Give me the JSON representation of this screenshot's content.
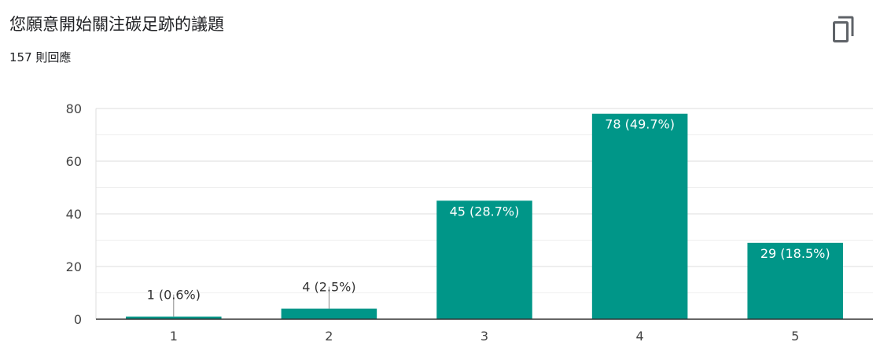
{
  "card": {
    "title": "您願意開始關注碳足跡的議題",
    "response_count": "157 則回應",
    "copy_icon": "copy-icon"
  },
  "colors": {
    "bar": "#009688",
    "grid": "#e8e8e8",
    "axis": "#333333",
    "label_inside": "#ffffff",
    "label_outside": "#333333"
  },
  "chart_data": {
    "type": "bar",
    "title": "",
    "xlabel": "",
    "ylabel": "",
    "categories": [
      "1",
      "2",
      "3",
      "4",
      "5"
    ],
    "values": [
      1,
      4,
      45,
      78,
      29
    ],
    "data_labels": [
      "1 (0.6%)",
      "4 (2.5%)",
      "45 (28.7%)",
      "78 (49.7%)",
      "29 (18.5%)"
    ],
    "ylim": [
      0,
      80
    ],
    "yticks": [
      0,
      20,
      40,
      60,
      80
    ],
    "grid": true,
    "legend": "none"
  }
}
